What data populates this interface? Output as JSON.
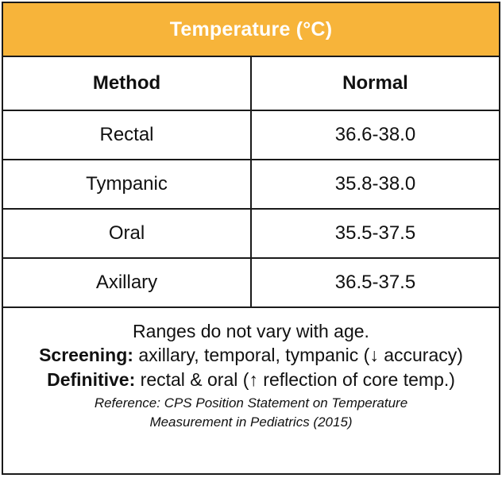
{
  "title": "Temperature (°C)",
  "table": {
    "headers": [
      "Method",
      "Normal"
    ],
    "rows": [
      {
        "method": "Rectal",
        "normal": "36.6-38.0"
      },
      {
        "method": "Tympanic",
        "normal": "35.8-38.0"
      },
      {
        "method": "Oral",
        "normal": "35.5-37.5"
      },
      {
        "method": "Axillary",
        "normal": "36.5-37.5"
      }
    ]
  },
  "notes": {
    "age_note": "Ranges do not vary with age.",
    "screening_label": "Screening:",
    "screening_text": "axillary, temporal, tympanic (↓ accuracy)",
    "definitive_label": "Definitive:",
    "definitive_text": "rectal & oral (↑ reflection of core temp.)",
    "reference_line1": "Reference: CPS Position Statement on Temperature",
    "reference_line2": "Measurement in Pediatrics (2015)"
  },
  "colors": {
    "title_background": "#f7b43a",
    "border": "#1a1a1a",
    "title_text": "#ffffff"
  }
}
